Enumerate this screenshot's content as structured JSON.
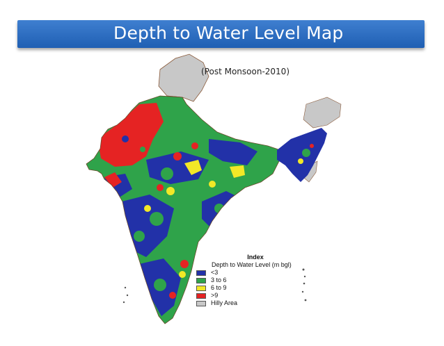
{
  "header": {
    "title": "Depth to Water Level Map"
  },
  "map": {
    "subtitle": "(Post Monsoon-2010)",
    "palette": {
      "lt3": "#2231a8",
      "3to6": "#2fa34a",
      "6to9": "#f2e827",
      "gt9": "#e52323",
      "hilly": "#c8c8c8"
    }
  },
  "legend": {
    "heading": "Index",
    "subheading": "Depth to Water Level (m bgl)",
    "items": [
      {
        "label": "<3",
        "color": "#2231a8"
      },
      {
        "label": "3 to 6",
        "color": "#2fa34a"
      },
      {
        "label": "6 to 9",
        "color": "#f2e827"
      },
      {
        "label": ">9",
        "color": "#e52323"
      },
      {
        "label": "Hilly Area",
        "color": "#c8c8c8"
      }
    ]
  }
}
